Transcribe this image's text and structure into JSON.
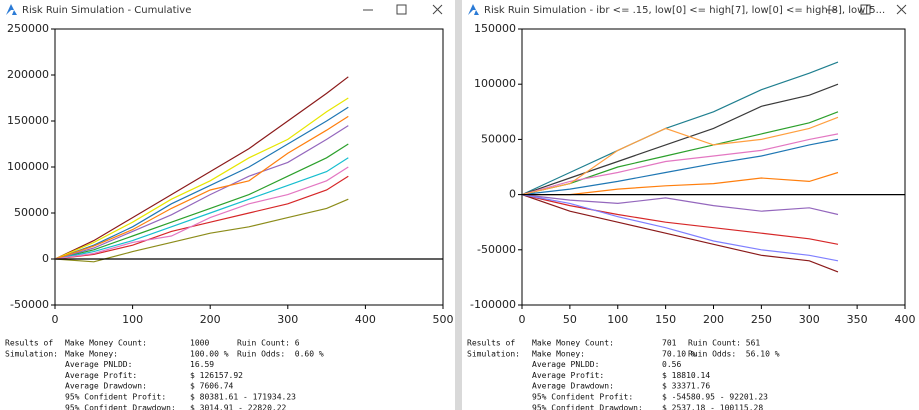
{
  "windows": [
    {
      "title": "Risk Ruin Simulation - Cumulative",
      "chart": {
        "type": "line",
        "x": [
          0,
          50,
          100,
          150,
          200,
          250,
          300,
          350,
          378
        ],
        "xlim": [
          0,
          500
        ],
        "xticks": [
          0,
          100,
          200,
          300,
          400,
          500
        ],
        "ylim": [
          -50000,
          250000
        ],
        "yticks": [
          -50000,
          0,
          50000,
          100000,
          150000,
          200000,
          250000
        ],
        "series": [
          {
            "color": "#8b1a1a",
            "values": [
              0,
              20000,
              45000,
              70000,
              95000,
              120000,
              150000,
              180000,
              198000
            ]
          },
          {
            "color": "#1f77b4",
            "values": [
              0,
              15000,
              35000,
              60000,
              80000,
              100000,
              125000,
              150000,
              165000
            ]
          },
          {
            "color": "#2ca02c",
            "values": [
              0,
              10000,
              25000,
              40000,
              55000,
              70000,
              90000,
              110000,
              125000
            ]
          },
          {
            "color": "#d62728",
            "values": [
              0,
              5000,
              15000,
              30000,
              40000,
              50000,
              60000,
              75000,
              90000
            ]
          },
          {
            "color": "#8c8c1a",
            "values": [
              0,
              -3000,
              8000,
              18000,
              28000,
              35000,
              45000,
              55000,
              65000
            ]
          },
          {
            "color": "#e6e600",
            "values": [
              0,
              18000,
              40000,
              65000,
              85000,
              110000,
              130000,
              160000,
              175000
            ]
          },
          {
            "color": "#9467bd",
            "values": [
              0,
              12000,
              30000,
              48000,
              70000,
              90000,
              105000,
              130000,
              145000
            ]
          },
          {
            "color": "#17becf",
            "values": [
              0,
              8000,
              20000,
              35000,
              50000,
              65000,
              80000,
              95000,
              110000
            ]
          },
          {
            "color": "#ff7f0e",
            "values": [
              0,
              14000,
              32000,
              55000,
              75000,
              85000,
              115000,
              140000,
              155000
            ]
          },
          {
            "color": "#e377c2",
            "values": [
              0,
              6000,
              18000,
              25000,
              45000,
              60000,
              70000,
              85000,
              100000
            ]
          }
        ]
      },
      "results": {
        "heading": [
          "Results of",
          "Simulation:"
        ],
        "rows": [
          [
            "Make Money Count:",
            "1000"
          ],
          [
            "Make Money:",
            "100.00 %"
          ],
          [
            "Average PNLDD:",
            "16.59"
          ],
          [
            "Average Profit:",
            "$ 126157.92"
          ],
          [
            "Average Drawdown:",
            "$ 7606.74"
          ],
          [
            "95% Confident Profit:",
            "$ 80381.61 - 171934.23"
          ],
          [
            "95% Confident Drawdown:",
            "$ 3014.91 - 22820.22"
          ]
        ],
        "side": [
          "Ruin Count: 6",
          "Ruin Odds:  0.60 %"
        ]
      }
    },
    {
      "title": "Risk Ruin Simulation - ibr <= .15, low[0] <= high[7], low[0] <= high[8], low[5...",
      "chart": {
        "type": "line",
        "x": [
          0,
          50,
          100,
          150,
          200,
          250,
          300,
          330
        ],
        "xlim": [
          0,
          400
        ],
        "xticks": [
          0,
          50,
          100,
          150,
          200,
          250,
          300,
          350,
          400
        ],
        "ylim": [
          -100000,
          150000
        ],
        "yticks": [
          -100000,
          -50000,
          0,
          50000,
          100000,
          150000
        ],
        "series": [
          {
            "color": "#1f7f8f",
            "values": [
              0,
              20000,
              40000,
              60000,
              75000,
              95000,
              110000,
              120000
            ]
          },
          {
            "color": "#3a3a3a",
            "values": [
              0,
              15000,
              30000,
              45000,
              60000,
              80000,
              90000,
              100000
            ]
          },
          {
            "color": "#2ca02c",
            "values": [
              0,
              10000,
              25000,
              35000,
              45000,
              55000,
              65000,
              75000
            ]
          },
          {
            "color": "#1f77b4",
            "values": [
              0,
              5000,
              12000,
              20000,
              28000,
              35000,
              45000,
              50000
            ]
          },
          {
            "color": "#ff7f0e",
            "values": [
              0,
              0,
              5000,
              8000,
              10000,
              15000,
              12000,
              20000
            ]
          },
          {
            "color": "#9467bd",
            "values": [
              0,
              -5000,
              -8000,
              -3000,
              -10000,
              -15000,
              -12000,
              -18000
            ]
          },
          {
            "color": "#d62728",
            "values": [
              0,
              -10000,
              -18000,
              -25000,
              -30000,
              -35000,
              -40000,
              -45000
            ]
          },
          {
            "color": "#8b1a1a",
            "values": [
              0,
              -15000,
              -25000,
              -35000,
              -45000,
              -55000,
              -60000,
              -70000
            ]
          },
          {
            "color": "#7f7fff",
            "values": [
              0,
              -8000,
              -20000,
              -30000,
              -42000,
              -50000,
              -55000,
              -60000
            ]
          },
          {
            "color": "#e377c2",
            "values": [
              0,
              12000,
              20000,
              30000,
              35000,
              40000,
              50000,
              55000
            ]
          },
          {
            "color": "#ff9f3f",
            "values": [
              0,
              10000,
              40000,
              60000,
              45000,
              50000,
              60000,
              70000
            ]
          }
        ]
      },
      "results": {
        "heading": [
          "Results of",
          "Simulation:"
        ],
        "rows": [
          [
            "Make Money Count:",
            "701"
          ],
          [
            "Make Money:",
            "70.10 %"
          ],
          [
            "Average PNLDD:",
            "0.56"
          ],
          [
            "Average Profit:",
            "$ 18810.14"
          ],
          [
            "Average Drawdown:",
            "$ 33371.76"
          ],
          [
            "95% Confident Profit:",
            "$ -54580.95 - 92201.23"
          ],
          [
            "95% Confident Drawdown:",
            "$ 2537.18 - 100115.28"
          ]
        ],
        "side": [
          "Ruin Count: 561",
          "Ruin Odds:  56.10 %"
        ]
      }
    }
  ]
}
